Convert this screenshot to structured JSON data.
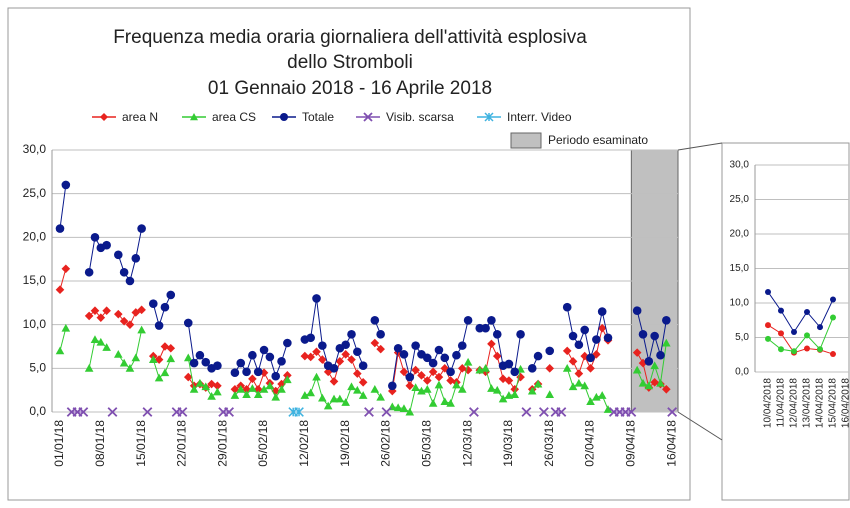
{
  "chart_data": [
    {
      "type": "line",
      "title": [
        "Frequenza media oraria giornaliera dell'attività esplosiva",
        "dello Stromboli",
        "01 Gennaio 2018 - 16 Aprile 2018"
      ],
      "categories": [
        "01/01/18",
        null,
        null,
        null,
        null,
        null,
        null,
        "08/01/18",
        null,
        null,
        null,
        null,
        null,
        null,
        "15/01/18",
        null,
        null,
        null,
        null,
        null,
        null,
        "22/01/18",
        null,
        null,
        null,
        null,
        null,
        null,
        "29/01/18",
        null,
        null,
        null,
        null,
        null,
        null,
        "05/02/18",
        null,
        null,
        null,
        null,
        null,
        null,
        "12/02/18",
        null,
        null,
        null,
        null,
        null,
        null,
        "19/02/18",
        null,
        null,
        null,
        null,
        null,
        null,
        "26/02/18",
        null,
        null,
        null,
        null,
        null,
        null,
        "05/03/18",
        null,
        null,
        null,
        null,
        null,
        null,
        "12/03/18",
        null,
        null,
        null,
        null,
        null,
        null,
        "19/03/18",
        null,
        null,
        null,
        null,
        null,
        null,
        "26/03/18",
        null,
        null,
        null,
        null,
        null,
        null,
        "02/04/18",
        null,
        null,
        null,
        null,
        null,
        null,
        "09/04/18",
        null,
        null,
        null,
        null,
        null,
        null,
        "16/04/18"
      ],
      "ylim": [
        0,
        30
      ],
      "yticks": [
        {
          "value": 0,
          "label": "0,0"
        },
        {
          "value": 5,
          "label": "5,0"
        },
        {
          "value": 10,
          "label": "10,0"
        },
        {
          "value": 15,
          "label": "15,0"
        },
        {
          "value": 20,
          "label": "20,0"
        },
        {
          "value": 25,
          "label": "25,0"
        },
        {
          "value": 30,
          "label": "30,0"
        }
      ],
      "grid": true,
      "highlight": {
        "label": "Periodo esaminato",
        "from": "09/04/18",
        "color": "#c0c0c0"
      },
      "series": [
        {
          "name": "area N",
          "color": "#e8231f",
          "marker": "diamond",
          "values": [
            14,
            16.4,
            null,
            null,
            null,
            11,
            11.6,
            10.8,
            11.6,
            null,
            11.2,
            10.4,
            10,
            11.4,
            11.7,
            null,
            6.4,
            6,
            7.5,
            7.3,
            null,
            null,
            4,
            3,
            3.2,
            2.8,
            3.2,
            3,
            null,
            null,
            2.6,
            3,
            2.6,
            3.8,
            2.6,
            4.5,
            3.3,
            2.4,
            3.2,
            4.2,
            null,
            null,
            6.4,
            6.3,
            6.9,
            6,
            4.6,
            3.5,
            5.8,
            6.6,
            6,
            4.4,
            3.4,
            null,
            7.9,
            7.2,
            null,
            2.4,
            6.8,
            4.6,
            3,
            4.8,
            4.2,
            3.6,
            4.6,
            4,
            5,
            3.6,
            3.4,
            5,
            4.8,
            null,
            4.8,
            4.6,
            7.8,
            6.4,
            3.8,
            3.6,
            2.6,
            4,
            null,
            2.6,
            3.2,
            null,
            5,
            null,
            null,
            7,
            5.8,
            4.4,
            6.4,
            5,
            6.6,
            9.6,
            8.2,
            null,
            null,
            null,
            null,
            6.8,
            5.6,
            2.8,
            3.4,
            3.2,
            2.6,
            null
          ]
        },
        {
          "name": "area CS",
          "color": "#33cc33",
          "marker": "triangle",
          "values": [
            7,
            9.6,
            null,
            null,
            null,
            5,
            8.3,
            8,
            7.4,
            null,
            6.6,
            5.6,
            5,
            6.2,
            9.4,
            null,
            6,
            3.9,
            4.5,
            6.1,
            null,
            null,
            6.2,
            2.6,
            3.3,
            2.9,
            1.8,
            2.3,
            null,
            null,
            1.9,
            2.6,
            2,
            2.7,
            2,
            2.6,
            3,
            1.7,
            2.6,
            3.7,
            null,
            null,
            1.9,
            2.2,
            4,
            1.6,
            0.7,
            1.5,
            1.5,
            1.1,
            2.9,
            2.5,
            1.9,
            null,
            2.6,
            1.7,
            null,
            0.6,
            0.5,
            0.4,
            0,
            2.8,
            2.4,
            2.6,
            1,
            3.1,
            1.2,
            1,
            3.1,
            2.6,
            5.7,
            null,
            4.8,
            5,
            2.7,
            2.5,
            1.5,
            1.9,
            2,
            4.9,
            null,
            2.4,
            3.2,
            null,
            2,
            null,
            null,
            5,
            2.9,
            3.3,
            3,
            1.2,
            1.7,
            1.9,
            0.3,
            null,
            null,
            null,
            null,
            4.8,
            3.3,
            3,
            5.3,
            3.3,
            7.9,
            null
          ]
        },
        {
          "name": "Totale",
          "color": "#0a1a8c",
          "marker": "circle",
          "values": [
            21,
            26,
            null,
            null,
            null,
            16,
            20,
            18.8,
            19.1,
            null,
            18,
            16,
            15,
            17.6,
            21,
            null,
            12.4,
            9.9,
            12,
            13.4,
            null,
            null,
            10.2,
            5.6,
            6.5,
            5.7,
            5,
            5.3,
            null,
            null,
            4.5,
            5.6,
            4.6,
            6.5,
            4.6,
            7.1,
            6.3,
            4.1,
            5.8,
            7.9,
            null,
            null,
            8.3,
            8.5,
            13,
            7.6,
            5.3,
            5,
            7.3,
            7.7,
            8.9,
            6.9,
            5.3,
            null,
            10.5,
            8.9,
            null,
            3,
            7.3,
            6.6,
            4,
            7.6,
            6.6,
            6.2,
            5.6,
            7.1,
            6.2,
            4.6,
            6.5,
            7.6,
            10.5,
            null,
            9.6,
            9.6,
            10.5,
            8.9,
            5.3,
            5.5,
            4.6,
            8.9,
            null,
            5,
            6.4,
            null,
            7,
            null,
            null,
            12,
            8.7,
            7.7,
            9.4,
            6.2,
            8.3,
            11.5,
            8.5,
            null,
            null,
            null,
            null,
            11.6,
            8.9,
            5.8,
            8.7,
            6.5,
            10.5,
            null
          ]
        },
        {
          "name": "Visib. scarsa",
          "color": "#7f4fb0",
          "marker": "x",
          "values": [
            null,
            null,
            0,
            0,
            0,
            null,
            null,
            null,
            null,
            0,
            null,
            null,
            null,
            null,
            null,
            0,
            null,
            null,
            null,
            null,
            0,
            0,
            null,
            null,
            null,
            null,
            null,
            null,
            0,
            0,
            null,
            null,
            null,
            null,
            null,
            null,
            null,
            null,
            null,
            null,
            null,
            null,
            null,
            null,
            null,
            null,
            null,
            null,
            null,
            null,
            null,
            null,
            null,
            0,
            null,
            null,
            0,
            null,
            null,
            null,
            null,
            null,
            null,
            null,
            null,
            null,
            null,
            null,
            null,
            null,
            null,
            0,
            null,
            null,
            null,
            null,
            null,
            null,
            null,
            null,
            0,
            null,
            null,
            0,
            null,
            0,
            0,
            null,
            null,
            null,
            null,
            null,
            null,
            null,
            null,
            0,
            0,
            0,
            0,
            null,
            null,
            null,
            null,
            null,
            null,
            0
          ]
        },
        {
          "name": "Interr. Video",
          "color": "#3fb3e0",
          "marker": "asterisk",
          "values": [
            null,
            null,
            null,
            null,
            null,
            null,
            null,
            null,
            null,
            null,
            null,
            null,
            null,
            null,
            null,
            null,
            null,
            null,
            null,
            null,
            null,
            null,
            null,
            null,
            null,
            null,
            null,
            null,
            null,
            null,
            null,
            null,
            null,
            null,
            null,
            null,
            null,
            null,
            null,
            null,
            0,
            0,
            null,
            null,
            null,
            null,
            null,
            null,
            null,
            null,
            null,
            null,
            null,
            null,
            null,
            null,
            null,
            null,
            null,
            null,
            null,
            null,
            null,
            null,
            null,
            null,
            null,
            null,
            null,
            null,
            null,
            null,
            null,
            null,
            null,
            null,
            null,
            null,
            null,
            null,
            null,
            null,
            null,
            null,
            null,
            null,
            null,
            null,
            null,
            null,
            null,
            null,
            null,
            null,
            null,
            null,
            null,
            null,
            null,
            null,
            null,
            null,
            null,
            null,
            null,
            null
          ]
        }
      ]
    },
    {
      "type": "line",
      "categories": [
        "10/04/2018",
        "11/04/2018",
        "12/04/2018",
        "13/04/2018",
        "14/04/2018",
        "15/04/2018",
        "16/04/2018"
      ],
      "ylim": [
        0,
        30
      ],
      "yticks": [
        {
          "value": 0,
          "label": "0,0"
        },
        {
          "value": 5,
          "label": "5,0"
        },
        {
          "value": 10,
          "label": "10,0"
        },
        {
          "value": 15,
          "label": "15,0"
        },
        {
          "value": 20,
          "label": "20,0"
        },
        {
          "value": 25,
          "label": "25,0"
        },
        {
          "value": 30,
          "label": "30,0"
        }
      ],
      "grid": true,
      "series": [
        {
          "color": "#e8231f",
          "values": [
            6.8,
            5.6,
            2.8,
            3.4,
            3.2,
            2.6,
            null
          ]
        },
        {
          "color": "#33cc33",
          "values": [
            4.8,
            3.3,
            3,
            5.3,
            3.3,
            7.9,
            null
          ]
        },
        {
          "color": "#0a1a8c",
          "values": [
            11.6,
            8.9,
            5.8,
            8.7,
            6.5,
            10.5,
            null
          ]
        }
      ]
    }
  ]
}
